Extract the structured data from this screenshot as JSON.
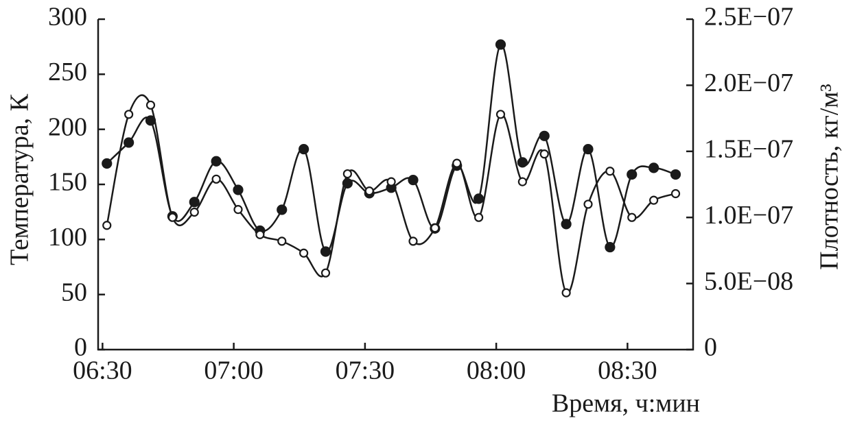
{
  "chart_data": {
    "type": "line",
    "x_label": "Время, ч:мин",
    "y_label": "Температура, К",
    "y2_label": "Плотность, кг/м³",
    "x": [
      "06:31",
      "06:36",
      "06:41",
      "06:46",
      "06:51",
      "06:56",
      "07:01",
      "07:06",
      "07:11",
      "07:16",
      "07:21",
      "07:26",
      "07:31",
      "07:36",
      "07:41",
      "07:46",
      "07:51",
      "07:56",
      "08:01",
      "08:06",
      "08:11",
      "08:16",
      "08:21",
      "08:26",
      "08:31",
      "08:36",
      "08:41"
    ],
    "xlim": [
      "06:29",
      "08:45"
    ],
    "xticks": [
      "06:30",
      "07:00",
      "07:30",
      "08:00",
      "08:30"
    ],
    "ylim": [
      0,
      300
    ],
    "yticks": [
      0,
      50,
      100,
      150,
      200,
      250,
      300
    ],
    "y2lim": [
      0,
      2.5e-07
    ],
    "y2ticks": [
      0,
      {
        "value": 5e-08,
        "label": "5.0E−08"
      },
      {
        "value": 1e-07,
        "label": "1.0E−07"
      },
      {
        "value": 1.5e-07,
        "label": "1.5E−07"
      },
      {
        "value": 2e-07,
        "label": "2.0E−07"
      },
      {
        "value": 2.5e-07,
        "label": "2.5E−07"
      }
    ],
    "series": [
      {
        "color": "#1a1a1a",
        "marker": "filled",
        "values": [
          169,
          188,
          208,
          121,
          134,
          171,
          145,
          108,
          127,
          182,
          89,
          151,
          142,
          147,
          154,
          110,
          167,
          137,
          277,
          170,
          194,
          114,
          182,
          93,
          159,
          165,
          159
        ]
      },
      {
        "color": "#1a1a1a",
        "marker": "open",
        "axis": "y2",
        "values": [
          9.4e-08,
          1.78e-07,
          1.85e-07,
          1e-07,
          1.04e-07,
          1.29e-07,
          1.06e-07,
          8.7e-08,
          8.2e-08,
          7.3e-08,
          5.8e-08,
          1.33e-07,
          1.2e-07,
          1.27e-07,
          8.2e-08,
          9.2e-08,
          1.41e-07,
          1e-07,
          1.78e-07,
          1.27e-07,
          1.48e-07,
          4.3e-08,
          1.1e-07,
          1.35e-07,
          1e-07,
          1.13e-07,
          1.18e-07
        ]
      }
    ]
  }
}
